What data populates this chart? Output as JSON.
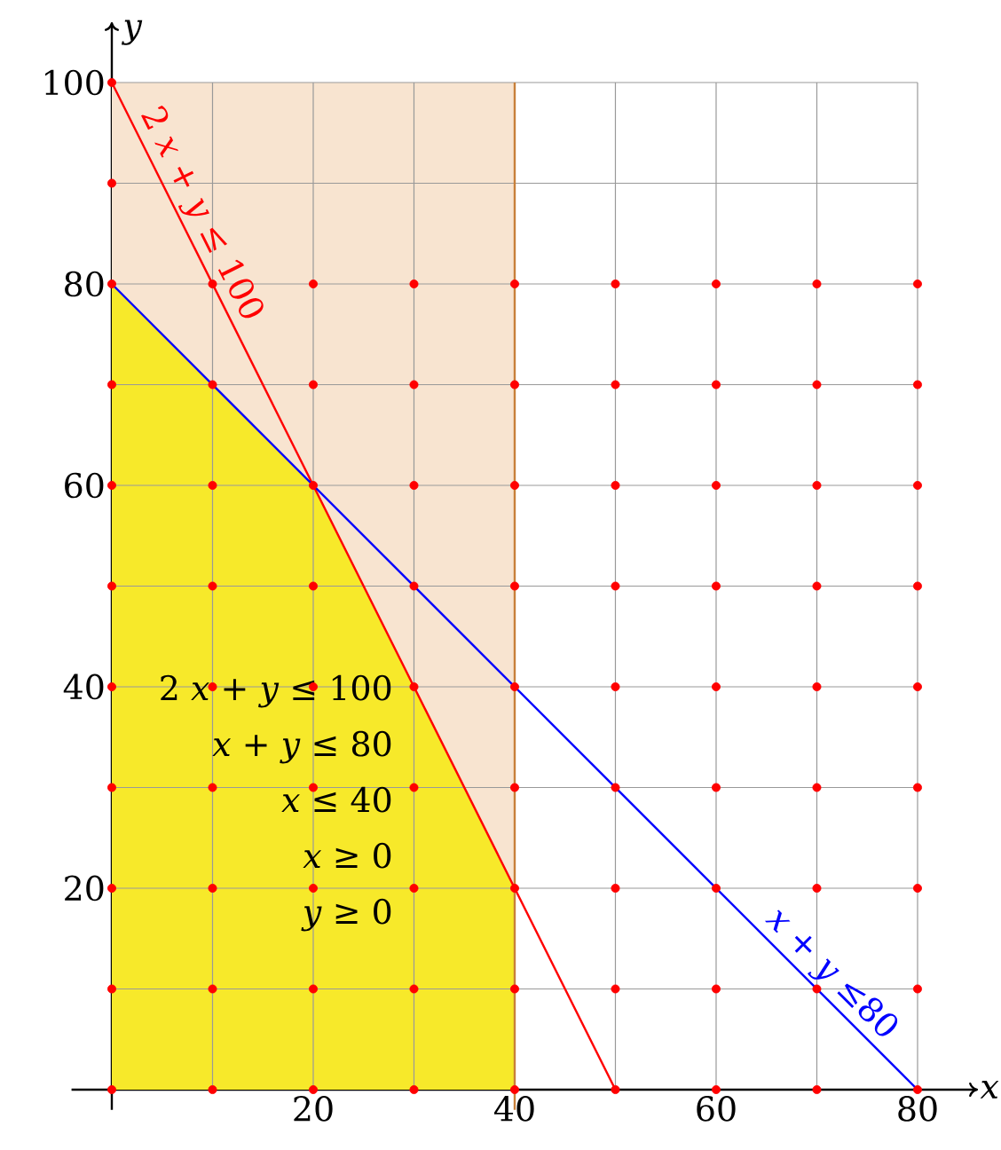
{
  "chart_data": {
    "type": "line",
    "xlabel": "x",
    "ylabel": "y",
    "xlim": [
      -4,
      86
    ],
    "ylim": [
      -2,
      106
    ],
    "xticks": [
      {
        "value": 10,
        "label": null
      },
      20,
      {
        "value": 30,
        "label": null
      },
      40,
      {
        "value": 50,
        "label": null
      },
      60,
      {
        "value": 70,
        "label": null
      },
      80
    ],
    "yticks": [
      {
        "value": 10,
        "label": null
      },
      20,
      {
        "value": 30,
        "label": null
      },
      40,
      {
        "value": 50,
        "label": null
      },
      60,
      {
        "value": 70,
        "label": null
      },
      80,
      {
        "value": 90,
        "label": null
      },
      100
    ],
    "grid": true,
    "bands": [
      {
        "axis": "x",
        "from": 0,
        "to": 40,
        "color": "#f8e4d0"
      }
    ],
    "ref_lines": [
      {
        "axis": "x",
        "value": 40,
        "color": "#c8803a"
      }
    ],
    "series": [
      {
        "type": "area",
        "color": "#f7e92a",
        "x": [
          0,
          20,
          40,
          40
        ],
        "values": [
          80,
          60,
          20,
          0
        ]
      },
      {
        "color": "#ff0000",
        "x": [
          0,
          50
        ],
        "values": [
          100,
          0
        ]
      },
      {
        "color": "#0000ff",
        "x": [
          0,
          80
        ],
        "values": [
          80,
          0
        ]
      },
      {
        "type": "scatter",
        "color": "#ff0000",
        "marker": "circle",
        "x": [
          0,
          10,
          20,
          30,
          40,
          50,
          60,
          70,
          80,
          0,
          10,
          20,
          30,
          40,
          50,
          60,
          70,
          80,
          0,
          10,
          20,
          30,
          40,
          50,
          60,
          70,
          80,
          0,
          10,
          20,
          30,
          40,
          50,
          60,
          70,
          80,
          0,
          10,
          20,
          30,
          40,
          50,
          60,
          70,
          80,
          0,
          10,
          20,
          30,
          40,
          50,
          60,
          70,
          80,
          0,
          10,
          20,
          30,
          40,
          50,
          60,
          70,
          80,
          0,
          10,
          20,
          30,
          40,
          50,
          60,
          70,
          80,
          0,
          10,
          20,
          30,
          40,
          50,
          60,
          70,
          80,
          0,
          0
        ],
        "values": [
          0,
          0,
          0,
          0,
          0,
          0,
          0,
          0,
          0,
          10,
          10,
          10,
          10,
          10,
          10,
          10,
          10,
          10,
          20,
          20,
          20,
          20,
          20,
          20,
          20,
          20,
          20,
          30,
          30,
          30,
          30,
          30,
          30,
          30,
          30,
          30,
          40,
          40,
          40,
          40,
          40,
          40,
          40,
          40,
          40,
          50,
          50,
          50,
          50,
          50,
          50,
          50,
          50,
          50,
          60,
          60,
          60,
          60,
          60,
          60,
          60,
          60,
          60,
          70,
          70,
          70,
          70,
          70,
          70,
          70,
          70,
          70,
          80,
          80,
          80,
          80,
          80,
          80,
          80,
          80,
          80,
          90,
          100
        ]
      }
    ],
    "annotations": [
      {
        "text": "2 *x* + *y* ≤ 100",
        "x": 7,
        "y": 86
      },
      {
        "text": "*x* + *y* ≤80",
        "x": 70,
        "y": 10
      },
      "2 *x* + *y* ≤ 100",
      "*x* + *y* ≤  80",
      "*x* ≤  40",
      "*x* ≥  0",
      "*y* ≥  0"
    ]
  }
}
